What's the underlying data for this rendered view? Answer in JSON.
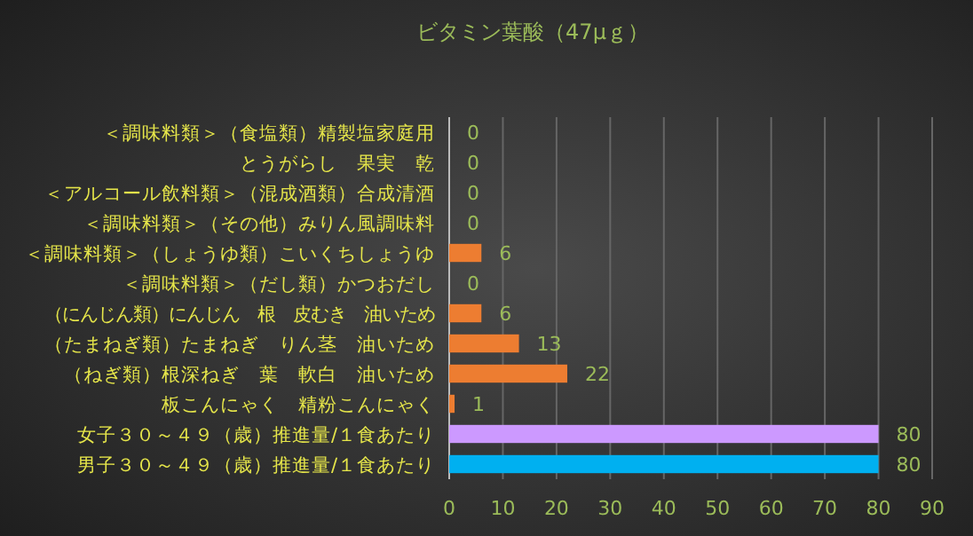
{
  "chart_data": {
    "type": "bar",
    "orientation": "horizontal",
    "title": "ビタミン葉酸（47μｇ）",
    "categories": [
      "＜調味料類＞（食塩類）精製塩家庭用",
      "とうがらし　果実　乾",
      "＜アルコール飲料類＞（混成酒類）合成清酒",
      "＜調味料類＞（その他）みりん風調味料",
      "＜調味料類＞（しょうゆ類）こいくちしょうゆ",
      "＜調味料類＞（だし類）かつおだし",
      "（にんじん類）にんじん　根　皮むき　油いため",
      "（たまねぎ類）たまねぎ　りん茎　油いため",
      "（ねぎ類）根深ねぎ　葉　軟白　油いため",
      "板こんにゃく　精粉こんにゃく",
      "女子３０～４９（歳）推進量/１食あたり",
      "男子３０～４９（歳）推進量/１食あたり"
    ],
    "values": [
      0,
      0,
      0,
      0,
      6,
      0,
      6,
      13,
      22,
      1,
      80,
      80
    ],
    "colors": [
      "#ed7d31",
      "#ed7d31",
      "#ed7d31",
      "#ed7d31",
      "#ed7d31",
      "#ed7d31",
      "#ed7d31",
      "#ed7d31",
      "#ed7d31",
      "#ed7d31",
      "#cc99ff",
      "#00b0f0"
    ],
    "xlim": [
      0,
      90
    ],
    "xticks": [
      0,
      10,
      20,
      30,
      40,
      50,
      60,
      70,
      80,
      90
    ],
    "grid": "x",
    "data_labels": true
  }
}
